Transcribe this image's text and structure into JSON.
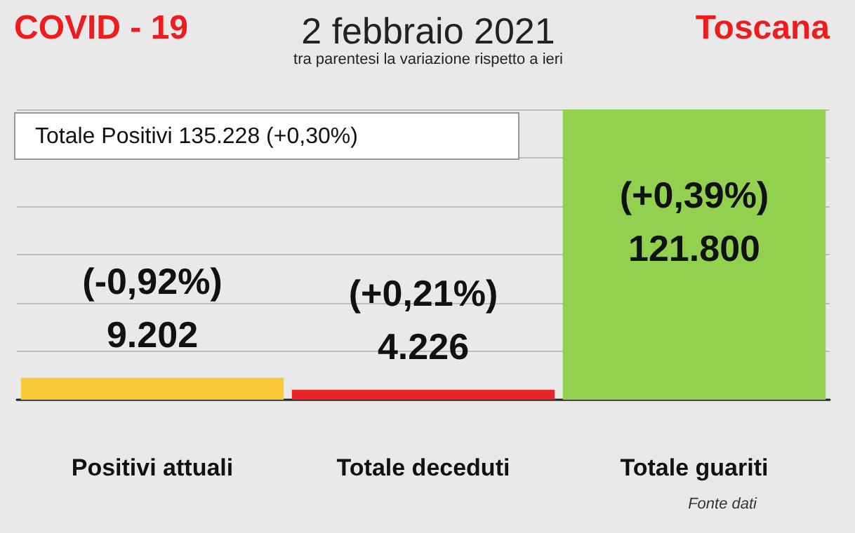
{
  "chart_data": {
    "type": "bar",
    "title": "2 febbraio 2021",
    "subtitle": "tra parentesi la variazione rispetto a ieri",
    "categories": [
      "Positivi attuali",
      "Totale deceduti",
      "Totale guariti"
    ],
    "values": [
      9202,
      4226,
      121800
    ],
    "colors": [
      "#f9c93a",
      "#e8262a",
      "#92d050"
    ],
    "value_labels": [
      "9.202",
      "4.226",
      "121.800"
    ],
    "ylim": [
      0,
      121800
    ],
    "yticks": [
      {
        "value": 0,
        "label": null
      },
      {
        "value": 20300,
        "label": null
      },
      {
        "value": 40600,
        "label": null
      },
      {
        "value": 60900,
        "label": null
      },
      {
        "value": 81200,
        "label": null
      },
      {
        "value": 101500,
        "label": null
      },
      {
        "value": 121800,
        "label": null
      }
    ],
    "tick_labels": "x",
    "grid": "y",
    "annotations": [
      "COVID - 19",
      "Toscana",
      "Totale Positivi     135.228 (+0,30%)",
      "Fonte dati",
      "(-0,92%)",
      "(+0,21%)",
      "(+0,39%)"
    ]
  }
}
